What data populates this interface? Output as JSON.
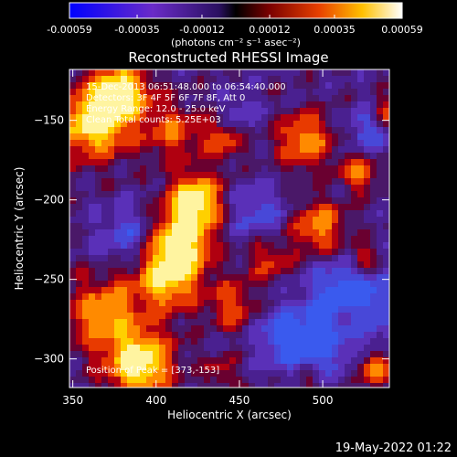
{
  "chart_data": {
    "type": "heatmap",
    "title": "Reconstructed RHESSI Image",
    "xlabel": "Heliocentric X (arcsec)",
    "ylabel": "Heliocentric Y (arcsec)",
    "x_ticks": [
      350,
      400,
      450,
      500
    ],
    "y_ticks": [
      -150,
      -200,
      -250,
      -300
    ],
    "xlim": [
      348,
      540
    ],
    "ylim": [
      -318,
      -118
    ],
    "colorbar": {
      "ticks": [
        "-0.00059",
        "-0.00035",
        "-0.00012",
        "0.00012",
        "0.00035",
        "0.00059"
      ],
      "range": [
        -0.00059,
        0.00059
      ],
      "unit_label": "(photons cm⁻² s⁻¹ asec⁻²)"
    },
    "info_lines": [
      "15-Dec-2013 06:51:48.000 to 06:54:40.000",
      "Detectors: 3F 4F 5F 6F 7F 8F, Att 0",
      "Energy Range: 12.0 - 25.0 keV",
      "Clean   Total counts: 5.25E+03"
    ],
    "peak_label": "Position of Peak = [373,-153]",
    "peak": [
      373,
      -153
    ],
    "footer_date": "19-May-2022 01:22"
  }
}
